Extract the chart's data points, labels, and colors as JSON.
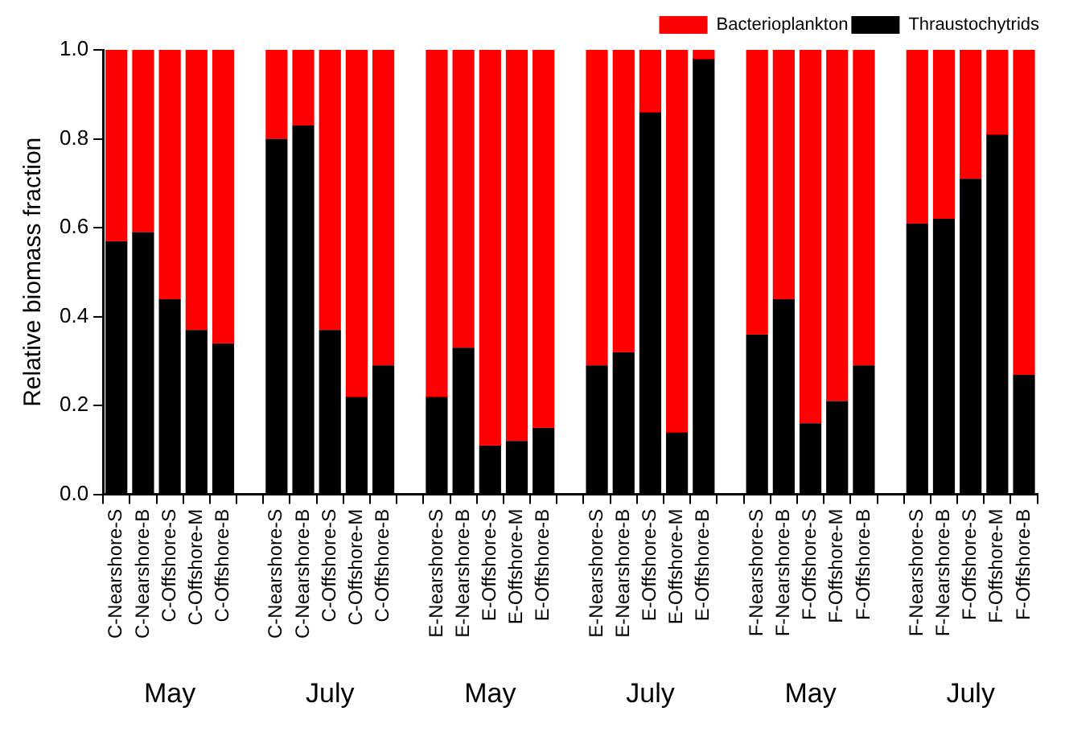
{
  "chart_data": {
    "type": "bar",
    "stacked": true,
    "ylabel": "Relative biomass fraction",
    "categories": [
      "C-Nearshore-S",
      "C-Nearshore-B",
      "C-Offshore-S",
      "C-Offshore-M",
      "C-Offshore-B",
      null,
      "C-Nearshore-S",
      "C-Nearshore-B",
      "C-Offshore-S",
      "C-Offshore-M",
      "C-Offshore-B",
      null,
      "E-Nearshore-S",
      "E-Nearshore-B",
      "E-Offshore-S",
      "E-Offshore-M",
      "E-Offshore-B",
      null,
      "E-Nearshore-S",
      "E-Nearshore-B",
      "E-Offshore-S",
      "E-Offshore-M",
      "E-Offshore-B",
      null,
      "F-Nearshore-S",
      "F-Nearshore-B",
      "F-Offshore-S",
      "F-Offshore-M",
      "F-Offshore-B",
      null,
      "F-Nearshore-S",
      "F-Nearshore-B",
      "F-Offshore-S",
      "F-Offshore-M",
      "F-Offshore-B"
    ],
    "series": [
      {
        "name": "Thraustochytrids",
        "color": "#000000",
        "values": [
          0.57,
          0.59,
          0.44,
          0.37,
          0.34,
          null,
          0.8,
          0.83,
          0.37,
          0.22,
          0.29,
          null,
          0.22,
          0.33,
          0.11,
          0.12,
          0.15,
          null,
          0.29,
          0.32,
          0.86,
          0.14,
          0.98,
          null,
          0.36,
          0.44,
          0.16,
          0.21,
          0.29,
          null,
          0.61,
          0.62,
          0.71,
          0.81,
          0.27
        ]
      },
      {
        "name": "Bacterioplankton",
        "color": "#ff0000",
        "values": [
          0.43,
          0.41,
          0.56,
          0.63,
          0.66,
          null,
          0.2,
          0.17,
          0.63,
          0.78,
          0.71,
          null,
          0.78,
          0.67,
          0.89,
          0.88,
          0.85,
          null,
          0.71,
          0.68,
          0.14,
          0.86,
          0.02,
          null,
          0.64,
          0.56,
          0.84,
          0.79,
          0.71,
          null,
          0.39,
          0.38,
          0.29,
          0.19,
          0.73
        ]
      }
    ],
    "ylim": [
      0,
      1
    ],
    "yticks": [
      {
        "value": 0,
        "label": "0.0"
      },
      {
        "value": 0.2,
        "label": "0.2"
      },
      {
        "value": 0.4,
        "label": "0.4"
      },
      {
        "value": 0.6,
        "label": "0.6"
      },
      {
        "value": 0.8,
        "label": "0.8"
      },
      {
        "value": 1,
        "label": "1.0"
      }
    ],
    "grid": false,
    "legend": "top right",
    "annotations": [
      "May",
      "July",
      "May",
      "July",
      "May",
      "July"
    ]
  }
}
